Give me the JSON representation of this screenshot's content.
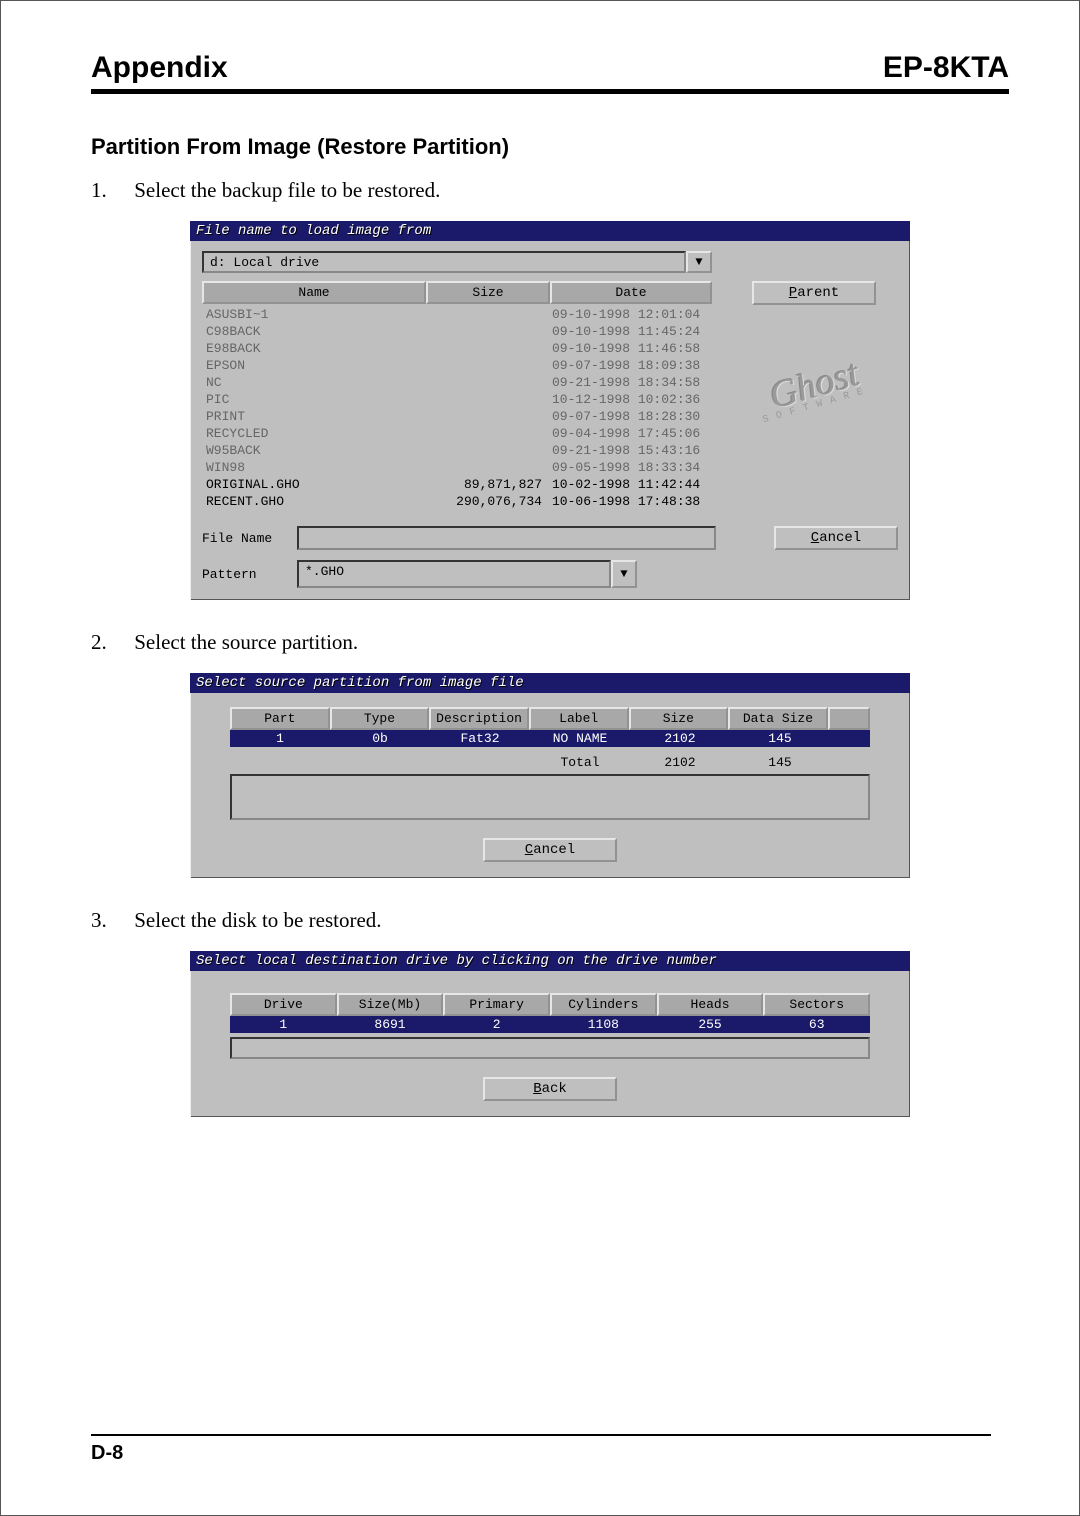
{
  "header": {
    "left": "Appendix",
    "right": "EP-8KTA"
  },
  "section_title": "Partition From Image (Restore Partition)",
  "steps": [
    "Select the backup file to be restored.",
    "Select the source partition.",
    "Select the disk to be restored."
  ],
  "page_number": "D-8",
  "dlg1": {
    "title": "File name to load image from",
    "drive_value": "d: Local drive",
    "col_headers": [
      "Name",
      "Size",
      "Date"
    ],
    "parent_btn": "Parent",
    "cancel_btn": "Cancel",
    "ghost_brand": "Ghost",
    "ghost_sub": "S O F T W A R E",
    "rows": [
      {
        "name": "ASUSBI~1",
        "size": "",
        "date": "09-10-1998 12:01:04",
        "dim": true
      },
      {
        "name": "C98BACK",
        "size": "",
        "date": "09-10-1998 11:45:24",
        "dim": true
      },
      {
        "name": "E98BACK",
        "size": "",
        "date": "09-10-1998 11:46:58",
        "dim": true
      },
      {
        "name": "EPSON",
        "size": "",
        "date": "09-07-1998 18:09:38",
        "dim": true
      },
      {
        "name": "NC",
        "size": "",
        "date": "09-21-1998 18:34:58",
        "dim": true
      },
      {
        "name": "PIC",
        "size": "",
        "date": "10-12-1998 10:02:36",
        "dim": true
      },
      {
        "name": "PRINT",
        "size": "",
        "date": "09-07-1998 18:28:30",
        "dim": true
      },
      {
        "name": "RECYCLED",
        "size": "",
        "date": "09-04-1998 17:45:06",
        "dim": true
      },
      {
        "name": "W95BACK",
        "size": "",
        "date": "09-21-1998 15:43:16",
        "dim": true
      },
      {
        "name": "WIN98",
        "size": "",
        "date": "09-05-1998 18:33:34",
        "dim": true
      },
      {
        "name": "ORIGINAL.GHO",
        "size": "89,871,827",
        "date": "10-02-1998 11:42:44",
        "dim": false
      },
      {
        "name": "RECENT.GHO",
        "size": "290,076,734",
        "date": "10-06-1998 17:48:38",
        "dim": false
      }
    ],
    "file_name_label": "File Name",
    "pattern_label": "Pattern",
    "pattern_value": "*.GHO"
  },
  "dlg2": {
    "title": "Select source partition from image file",
    "col_headers": [
      "Part",
      "Type",
      "Description",
      "Label",
      "Size",
      "Data Size"
    ],
    "row": {
      "part": "1",
      "type": "0b",
      "desc": "Fat32",
      "label": "NO NAME",
      "size": "2102",
      "data": "145"
    },
    "total_label": "Total",
    "total_size": "2102",
    "total_data": "145",
    "cancel_btn": "Cancel"
  },
  "dlg3": {
    "title": "Select local destination drive by clicking on the drive number",
    "col_headers": [
      "Drive",
      "Size(Mb)",
      "Primary",
      "Cylinders",
      "Heads",
      "Sectors"
    ],
    "row": {
      "drive": "1",
      "size": "8691",
      "primary": "2",
      "cyl": "1108",
      "heads": "255",
      "sectors": "63"
    },
    "back_btn": "Back"
  },
  "colors": {
    "dialog_bg": "#bfbfbf",
    "titlebar_bg": "#1b1a6a",
    "selected_row_bg": "#1b1a6a",
    "dim_text": "#666666"
  }
}
